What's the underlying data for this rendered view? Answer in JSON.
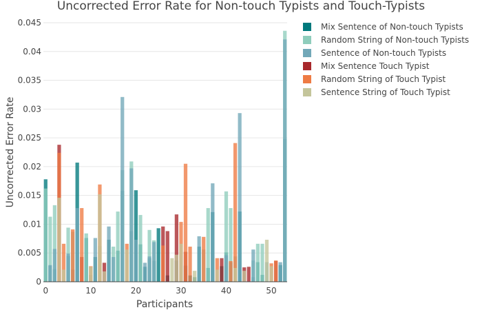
{
  "chart_data": {
    "type": "bar",
    "barmode": "overlay",
    "title": "Uncorrected Error Rate for Non-touch Typists and Touch-Typists",
    "xlabel": "Participants",
    "ylabel": "Uncorrected Error Rate",
    "xlim": [
      0,
      53
    ],
    "ylim": [
      0,
      0.045
    ],
    "x_ticks": [
      0,
      10,
      20,
      30,
      40,
      50
    ],
    "y_ticks": [
      0,
      0.005,
      0.01,
      0.015,
      0.02,
      0.025,
      0.03,
      0.035,
      0.04,
      0.045
    ],
    "y_tick_labels": [
      "0",
      "0.005",
      "0.01",
      "0.015",
      "0.02",
      "0.025",
      "0.03",
      "0.035",
      "0.04",
      "0.045"
    ],
    "grid": true,
    "legend_position": "top-right",
    "series": [
      {
        "name": "Mix Sentence of Non-touch Typists",
        "color": "#00797C",
        "points": [
          [
            0,
            0.0178
          ],
          [
            1,
            0.0028
          ],
          [
            2,
            0.0022
          ],
          [
            5,
            0.0045
          ],
          [
            6,
            0.0021
          ],
          [
            7,
            0.0207
          ],
          [
            9,
            0.0076
          ],
          [
            11,
            0.0043
          ],
          [
            14,
            0.0073
          ],
          [
            16,
            0.0054
          ],
          [
            17,
            0.0158
          ],
          [
            19,
            0.0088
          ],
          [
            20,
            0.0159
          ],
          [
            21,
            0.0065
          ],
          [
            22,
            0.0026
          ],
          [
            23,
            0.0041
          ],
          [
            24,
            0.0036
          ],
          [
            25,
            0.0093
          ],
          [
            27,
            0.0011
          ],
          [
            29,
            0.0037
          ],
          [
            31,
            0.0028
          ],
          [
            32,
            0.0011
          ],
          [
            33,
            0.0008
          ],
          [
            34,
            0.0061
          ],
          [
            36,
            0.0024
          ],
          [
            37,
            0.0121
          ],
          [
            39,
            0.0027
          ],
          [
            40,
            0.0051
          ],
          [
            41,
            0.0034
          ],
          [
            43,
            0.0122
          ],
          [
            46,
            0.0008
          ],
          [
            47,
            0.0034
          ],
          [
            48,
            0.0012
          ],
          [
            52,
            0.0029
          ],
          [
            53,
            0.0248
          ]
        ]
      },
      {
        "name": "Random String of Non-touch Typists",
        "color": "#8FCDBC",
        "points": [
          [
            0,
            0.0162
          ],
          [
            1,
            0.0113
          ],
          [
            2,
            0.0133
          ],
          [
            5,
            0.0094
          ],
          [
            6,
            0.0087
          ],
          [
            9,
            0.0084
          ],
          [
            12,
            0.0062
          ],
          [
            15,
            0.0061
          ],
          [
            16,
            0.0122
          ],
          [
            17,
            0.0194
          ],
          [
            19,
            0.0209
          ],
          [
            21,
            0.0116
          ],
          [
            23,
            0.009
          ],
          [
            24,
            0.0072
          ],
          [
            35,
            0.0056
          ],
          [
            36,
            0.0128
          ],
          [
            40,
            0.0157
          ],
          [
            41,
            0.0128
          ],
          [
            42,
            0.0044
          ],
          [
            46,
            0.0037
          ],
          [
            47,
            0.0066
          ],
          [
            48,
            0.0066
          ],
          [
            53,
            0.0436
          ]
        ]
      },
      {
        "name": "Sentence of Non-touch Typists",
        "color": "#72A8B8",
        "points": [
          [
            1,
            0.0029
          ],
          [
            2,
            0.0057
          ],
          [
            5,
            0.0049
          ],
          [
            7,
            0.0128
          ],
          [
            10,
            0.0012
          ],
          [
            11,
            0.0076
          ],
          [
            14,
            0.0096
          ],
          [
            15,
            0.0043
          ],
          [
            17,
            0.0321
          ],
          [
            19,
            0.0197
          ],
          [
            20,
            0.0073
          ],
          [
            22,
            0.0033
          ],
          [
            23,
            0.0044
          ],
          [
            24,
            0.0069
          ],
          [
            34,
            0.0079
          ],
          [
            37,
            0.0171
          ],
          [
            40,
            0.0046
          ],
          [
            43,
            0.0293
          ],
          [
            46,
            0.0056
          ],
          [
            49,
            0.0034
          ],
          [
            52,
            0.0034
          ],
          [
            53,
            0.0421
          ]
        ]
      },
      {
        "name": "Mix Sentence Touch Typist",
        "color": "#A8282C",
        "points": [
          [
            3,
            0.0238
          ],
          [
            8,
            0.0043
          ],
          [
            13,
            0.0033
          ],
          [
            26,
            0.0096
          ],
          [
            27,
            0.0088
          ],
          [
            29,
            0.0117
          ],
          [
            31,
            0.0052
          ],
          [
            39,
            0.0041
          ],
          [
            44,
            0.0025
          ],
          [
            45,
            0.0026
          ],
          [
            51,
            0.0036
          ]
        ]
      },
      {
        "name": "Random String of Touch Typist",
        "color": "#EE7B44",
        "points": [
          [
            3,
            0.0224
          ],
          [
            4,
            0.0066
          ],
          [
            6,
            0.0091
          ],
          [
            8,
            0.0128
          ],
          [
            10,
            0.0027
          ],
          [
            12,
            0.0169
          ],
          [
            18,
            0.0066
          ],
          [
            26,
            0.0063
          ],
          [
            30,
            0.0104
          ],
          [
            31,
            0.0205
          ],
          [
            32,
            0.0061
          ],
          [
            35,
            0.0078
          ],
          [
            38,
            0.0041
          ],
          [
            41,
            0.0036
          ],
          [
            42,
            0.0241
          ],
          [
            50,
            0.0032
          ],
          [
            51,
            0.0037
          ]
        ]
      },
      {
        "name": "Sentence String of Touch Typist",
        "color": "#C4C59B",
        "points": [
          [
            3,
            0.0146
          ],
          [
            4,
            0.0021
          ],
          [
            10,
            0.0026
          ],
          [
            12,
            0.0152
          ],
          [
            13,
            0.0018
          ],
          [
            18,
            0.0056
          ],
          [
            28,
            0.0041
          ],
          [
            29,
            0.0047
          ],
          [
            30,
            0.0066
          ],
          [
            33,
            0.0019
          ],
          [
            38,
            0.0021
          ],
          [
            42,
            0.0024
          ],
          [
            44,
            0.0019
          ],
          [
            49,
            0.0073
          ],
          [
            50,
            0.0027
          ]
        ]
      }
    ]
  }
}
